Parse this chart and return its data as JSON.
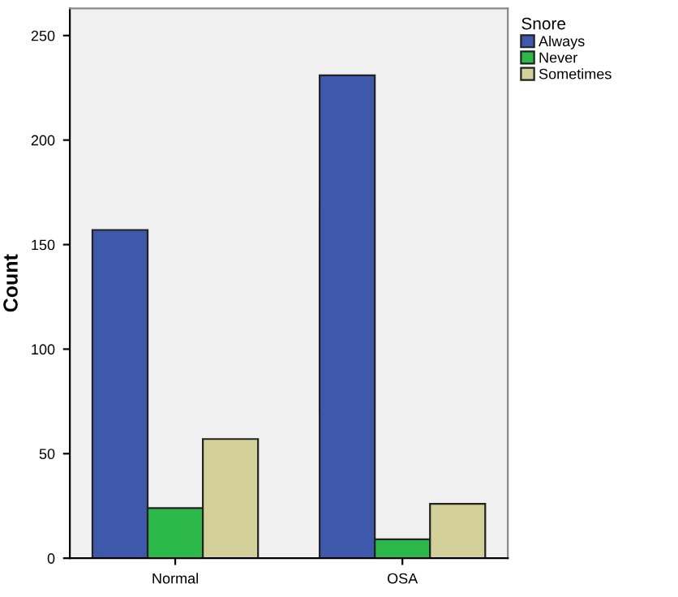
{
  "chart_data": {
    "type": "bar",
    "ylabel": "Count",
    "legend_title": "Snore",
    "categories": [
      "Normal",
      "OSA"
    ],
    "series": [
      {
        "name": "Always",
        "color": "#3e58ac",
        "values": [
          157,
          231
        ]
      },
      {
        "name": "Never",
        "color": "#2db84a",
        "values": [
          24,
          9
        ]
      },
      {
        "name": "Sometimes",
        "color": "#d4d09a",
        "values": [
          57,
          26
        ]
      }
    ],
    "ylim": [
      0,
      263
    ],
    "yticks": [
      0,
      50,
      100,
      150,
      200,
      250
    ],
    "grid": false,
    "legend": "top right"
  }
}
